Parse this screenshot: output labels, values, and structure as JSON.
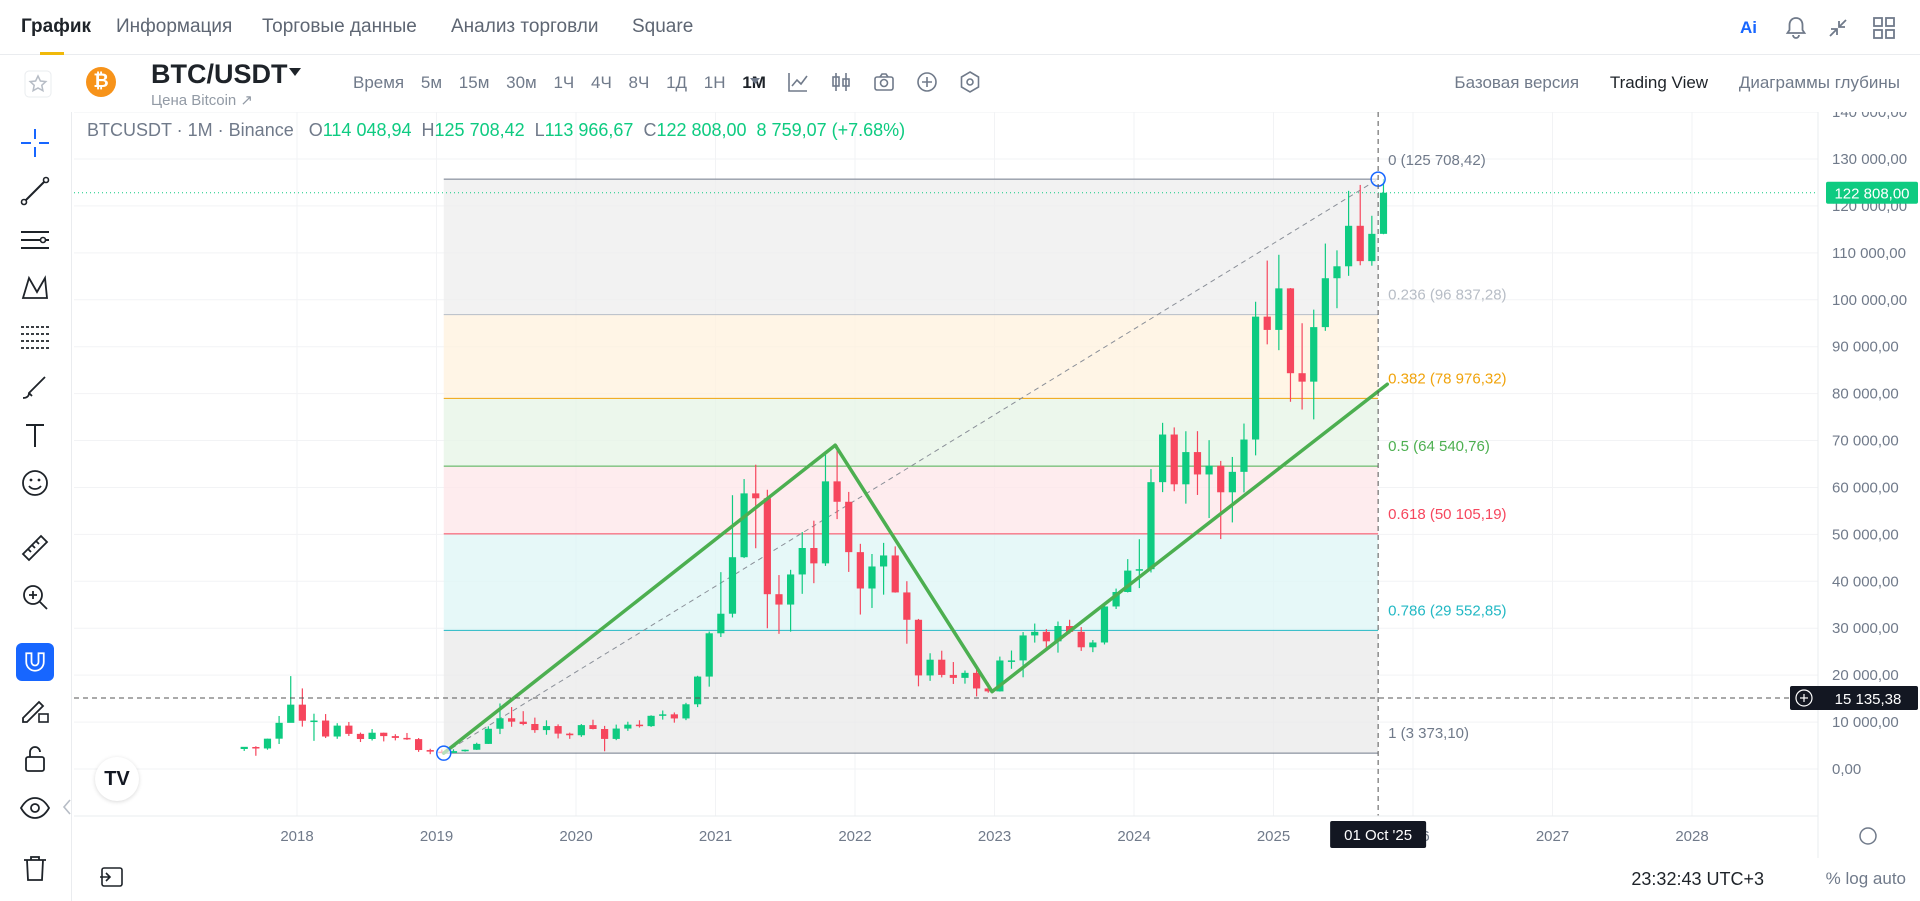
{
  "nav": {
    "tabs": [
      {
        "label": "График"
      },
      {
        "label": "Информация"
      },
      {
        "label": "Торговые данные"
      },
      {
        "label": "Анализ торговли"
      },
      {
        "label": "Square"
      }
    ],
    "icons": [
      "ai-icon",
      "bell-icon",
      "collapse-icon",
      "layout-icon"
    ],
    "ai_label": "Ai"
  },
  "toolbar": {
    "symbol": "BTC/USDT",
    "subtitle": "Цена Bitcoin ↗",
    "logo_letter": "₿",
    "intervals": [
      "Время",
      "5м",
      "15м",
      "30м",
      "1Ч",
      "4Ч",
      "8Ч",
      "1Д",
      "1Н",
      "1M"
    ],
    "active_interval": "1M",
    "views": [
      "Базовая версия",
      "Trading View",
      "Диаграммы глубины"
    ],
    "active_view": "Trading View"
  },
  "legend": {
    "title": "BTCUSDT · 1M · Binance",
    "o_label": "O",
    "o": "114 048,94",
    "h_label": "H",
    "h": "125 708,42",
    "l_label": "L",
    "l": "113 966,67",
    "c_label": "C",
    "c": "122 808,00",
    "change": "8 759,07 (+7.68%)"
  },
  "price_axis": {
    "ticks": [
      "140 000,00",
      "130 000,00",
      "120 000,00",
      "110 000,00",
      "100 000,00",
      "90 000,00",
      "80 000,00",
      "70 000,00",
      "60 000,00",
      "50 000,00",
      "40 000,00",
      "30 000,00",
      "20 000,00",
      "10 000,00",
      "0,00"
    ],
    "last_price": "122 808,00",
    "crosshair_price": "15 135,38"
  },
  "time_axis": {
    "ticks": [
      "2018",
      "2019",
      "2020",
      "2021",
      "2022",
      "2023",
      "2024",
      "2025",
      "2026",
      "2027",
      "2028"
    ],
    "crosshair_date": "01 Oct '25"
  },
  "fib": {
    "levels": [
      {
        "ratio": "0",
        "label": "0 (125 708,42)",
        "price": 125708.42,
        "color": "#707a8a"
      },
      {
        "ratio": "0.236",
        "label": "0.236 (96 837,28)",
        "price": 96837.28,
        "color": "#b7bdc6"
      },
      {
        "ratio": "0.382",
        "label": "0.382 (78 976,32)",
        "price": 78976.32,
        "color": "#f0a30b"
      },
      {
        "ratio": "0.5",
        "label": "0.5 (64 540,76)",
        "price": 64540.76,
        "color": "#4caf50"
      },
      {
        "ratio": "0.618",
        "label": "0.618 (50 105,19)",
        "price": 50105.19,
        "color": "#f6465d"
      },
      {
        "ratio": "0.786",
        "label": "0.786 (29 552,85)",
        "price": 29552.85,
        "color": "#22b8c4"
      },
      {
        "ratio": "1",
        "label": "1 (3 373,10)",
        "price": 3373.1,
        "color": "#707a8a"
      }
    ]
  },
  "footer": {
    "clock": "23:32:43 UTC+3",
    "right": "% log auto"
  },
  "colors": {
    "up": "#0ecb81",
    "down": "#f6465d",
    "pattern": "#4caf50",
    "accent": "#f0b90b",
    "active_tool": "#1766ff"
  },
  "chart_data": {
    "type": "candlestick",
    "title": "BTCUSDT · 1M · Binance",
    "ylim": [
      0,
      140000
    ],
    "x_range": [
      "2017-08",
      "2028-06"
    ],
    "candles": [
      [
        "2017-08",
        4261,
        4485,
        3850,
        4724
      ],
      [
        "2017-09",
        4689,
        4855,
        2817,
        4378
      ],
      [
        "2017-10",
        4378,
        6470,
        4110,
        6463
      ],
      [
        "2017-11",
        6463,
        11300,
        5325,
        9838
      ],
      [
        "2017-12",
        9838,
        19798,
        10835,
        13716
      ],
      [
        "2018-01",
        13716,
        17176,
        9035,
        10285
      ],
      [
        "2018-02",
        10285,
        11786,
        6000,
        10326
      ],
      [
        "2018-03",
        10326,
        11710,
        6600,
        6923
      ],
      [
        "2018-04",
        6923,
        9765,
        6430,
        9246
      ],
      [
        "2018-05",
        9246,
        10020,
        7032,
        7485
      ],
      [
        "2018-06",
        7485,
        7760,
        5750,
        6391
      ],
      [
        "2018-07",
        6391,
        8507,
        6070,
        7730
      ],
      [
        "2018-08",
        7730,
        7750,
        5880,
        7011
      ],
      [
        "2018-09",
        7011,
        7410,
        6100,
        6626
      ],
      [
        "2018-10",
        6626,
        7680,
        6200,
        6371
      ],
      [
        "2018-11",
        6371,
        6600,
        3652,
        4041
      ],
      [
        "2018-12",
        4041,
        4312,
        3156,
        3702
      ],
      [
        "2019-01",
        3702,
        4140,
        3350,
        3434
      ],
      [
        "2019-02",
        3434,
        4198,
        3400,
        3813
      ],
      [
        "2019-03",
        3813,
        4140,
        3700,
        4105
      ],
      [
        "2019-04",
        4105,
        5600,
        4050,
        5350
      ],
      [
        "2019-05",
        5350,
        9100,
        5330,
        8574
      ],
      [
        "2019-06",
        8574,
        13970,
        7440,
        10817
      ],
      [
        "2019-07",
        10817,
        13200,
        9000,
        10086
      ],
      [
        "2019-08",
        10086,
        12325,
        9320,
        9590
      ],
      [
        "2019-09",
        9590,
        10950,
        7710,
        8290
      ],
      [
        "2019-10",
        8290,
        10370,
        7300,
        9150
      ],
      [
        "2019-11",
        9150,
        9510,
        6515,
        7540
      ],
      [
        "2019-12",
        7540,
        7750,
        6430,
        7195
      ],
      [
        "2020-01",
        7195,
        9578,
        6850,
        9353
      ],
      [
        "2020-02",
        9353,
        10500,
        8450,
        8523
      ],
      [
        "2020-03",
        8523,
        9188,
        3782,
        6410
      ],
      [
        "2020-04",
        6410,
        9460,
        6150,
        8620
      ],
      [
        "2020-05",
        8620,
        10080,
        8130,
        9448
      ],
      [
        "2020-06",
        9448,
        10380,
        8833,
        9138
      ],
      [
        "2020-07",
        9138,
        11444,
        8970,
        11335
      ],
      [
        "2020-08",
        11335,
        12468,
        10525,
        11650
      ],
      [
        "2020-09",
        11650,
        12050,
        9875,
        10776
      ],
      [
        "2020-10",
        10776,
        14100,
        10416,
        13791
      ],
      [
        "2020-11",
        13791,
        19863,
        13195,
        19696
      ],
      [
        "2020-12",
        19696,
        29300,
        17550,
        28923
      ],
      [
        "2021-01",
        28923,
        41950,
        28130,
        33092
      ],
      [
        "2021-02",
        33092,
        58352,
        32296,
        45135
      ],
      [
        "2021-03",
        45135,
        61788,
        44950,
        58740
      ],
      [
        "2021-04",
        58740,
        64854,
        47044,
        57694
      ],
      [
        "2021-05",
        57694,
        59500,
        30000,
        37253
      ],
      [
        "2021-06",
        37253,
        41330,
        28805,
        35045
      ],
      [
        "2021-07",
        35045,
        42448,
        29278,
        41461
      ],
      [
        "2021-08",
        41461,
        50500,
        37332,
        47100
      ],
      [
        "2021-09",
        47100,
        52920,
        39600,
        43823
      ],
      [
        "2021-10",
        43823,
        67000,
        43283,
        61300
      ],
      [
        "2021-11",
        61300,
        69000,
        53256,
        56950
      ],
      [
        "2021-12",
        56950,
        59053,
        42000,
        46216
      ],
      [
        "2022-01",
        46216,
        47990,
        32917,
        38466
      ],
      [
        "2022-02",
        38466,
        45821,
        34322,
        43160
      ],
      [
        "2022-03",
        43160,
        48189,
        37155,
        45510
      ],
      [
        "2022-04",
        45510,
        47444,
        37578,
        37630
      ],
      [
        "2022-05",
        37630,
        40023,
        26700,
        31801
      ],
      [
        "2022-06",
        31801,
        31986,
        17622,
        19942
      ],
      [
        "2022-07",
        19942,
        24668,
        18781,
        23293
      ],
      [
        "2022-08",
        23293,
        25211,
        19520,
        20050
      ],
      [
        "2022-09",
        20050,
        22799,
        18125,
        19422
      ],
      [
        "2022-10",
        19422,
        20988,
        18190,
        20490
      ],
      [
        "2022-11",
        20490,
        21480,
        15476,
        17164
      ],
      [
        "2022-12",
        17164,
        18388,
        16256,
        16542
      ],
      [
        "2023-01",
        16542,
        23960,
        16499,
        23125
      ],
      [
        "2023-02",
        23125,
        25250,
        21351,
        23141
      ],
      [
        "2023-03",
        23141,
        29184,
        19549,
        28465
      ],
      [
        "2023-04",
        28465,
        30999,
        26942,
        29233
      ],
      [
        "2023-05",
        29233,
        29820,
        25811,
        27210
      ],
      [
        "2023-06",
        27210,
        31431,
        24800,
        30472
      ],
      [
        "2023-07",
        30472,
        31804,
        28861,
        29232
      ],
      [
        "2023-08",
        29232,
        30244,
        25166,
        25941
      ],
      [
        "2023-09",
        25941,
        27483,
        24901,
        26962
      ],
      [
        "2023-10",
        26962,
        35280,
        26538,
        34639
      ],
      [
        "2023-11",
        34639,
        38450,
        34097,
        37723
      ],
      [
        "2023-12",
        37723,
        44729,
        37615,
        42283
      ],
      [
        "2024-01",
        42283,
        48969,
        38555,
        42580
      ],
      [
        "2024-02",
        42580,
        63913,
        41884,
        61130
      ],
      [
        "2024-03",
        61130,
        73777,
        59005,
        71280
      ],
      [
        "2024-04",
        71280,
        72797,
        59191,
        60672
      ],
      [
        "2024-05",
        60672,
        71979,
        56552,
        67540
      ],
      [
        "2024-06",
        67540,
        71997,
        58402,
        62772
      ],
      [
        "2024-07",
        62772,
        70080,
        53485,
        64628
      ],
      [
        "2024-08",
        64628,
        65660,
        49000,
        58973
      ],
      [
        "2024-09",
        58973,
        66500,
        52550,
        63327
      ],
      [
        "2024-10",
        63327,
        73620,
        58946,
        70215
      ],
      [
        "2024-11",
        70215,
        99588,
        66835,
        96407
      ],
      [
        "2024-12",
        96407,
        108353,
        90500,
        93576
      ],
      [
        "2025-01",
        93576,
        109588,
        89256,
        102429
      ],
      [
        "2025-02",
        102429,
        102500,
        78258,
        84350
      ],
      [
        "2025-03",
        84350,
        95000,
        76606,
        82550
      ],
      [
        "2025-04",
        82550,
        97900,
        74508,
        94172
      ],
      [
        "2025-05",
        94172,
        111980,
        93377,
        104591
      ],
      [
        "2025-06",
        104591,
        110530,
        98200,
        107135
      ],
      [
        "2025-07",
        107135,
        123218,
        105100,
        115764
      ],
      [
        "2025-08",
        115764,
        124474,
        107350,
        108236
      ],
      [
        "2025-09",
        108236,
        117900,
        107255,
        114049
      ],
      [
        "2025-10",
        114048.94,
        125708.42,
        113966.67,
        122808.0
      ]
    ],
    "pattern_points": [
      [
        "2019-01-20",
        3373.1
      ],
      [
        "2021-11-10",
        69000
      ],
      [
        "2022-12-25",
        16500
      ],
      [
        "2025-10-25",
        82000
      ]
    ],
    "fib_anchor_low": [
      "2019-01-20",
      3373.1
    ],
    "fib_anchor_high": [
      "2025-10-01",
      125708.42
    ]
  }
}
